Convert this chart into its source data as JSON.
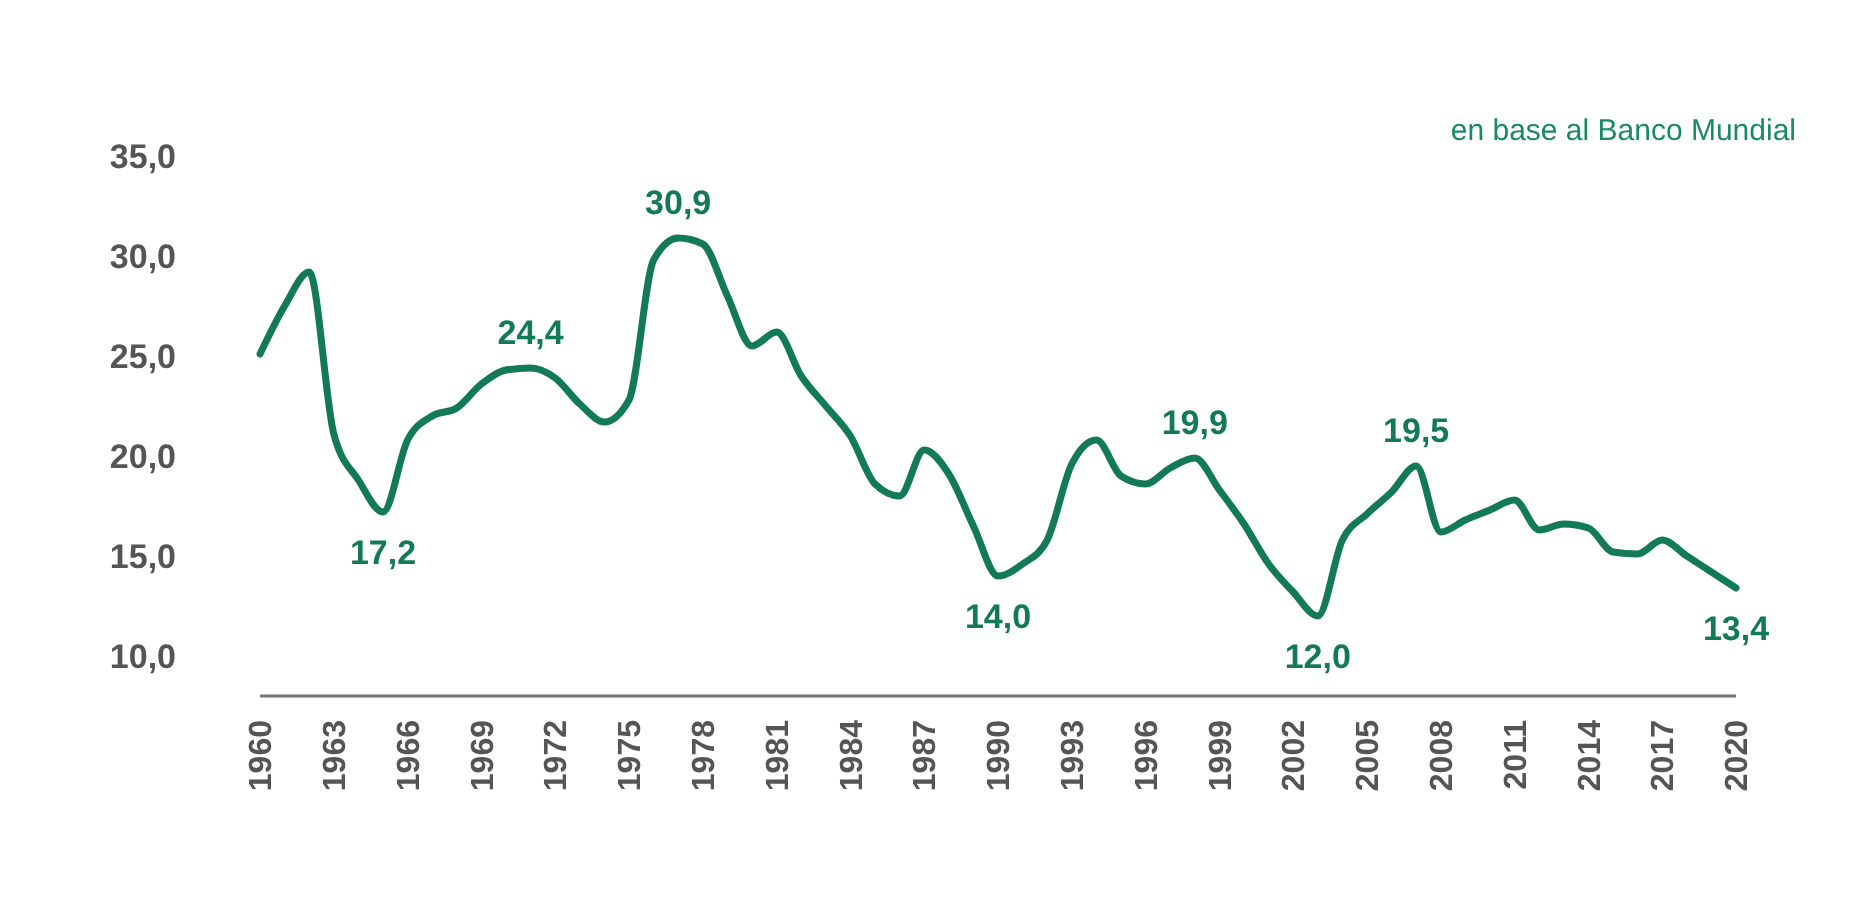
{
  "chart_data": {
    "type": "line",
    "annotations": [
      "en base al Banco Mundial"
    ],
    "x": [
      1960,
      1961,
      1962,
      1963,
      1964,
      1965,
      1966,
      1967,
      1968,
      1969,
      1970,
      1971,
      1972,
      1973,
      1974,
      1975,
      1976,
      1977,
      1978,
      1979,
      1980,
      1981,
      1982,
      1983,
      1984,
      1985,
      1986,
      1987,
      1988,
      1989,
      1990,
      1991,
      1992,
      1993,
      1994,
      1995,
      1996,
      1997,
      1998,
      1999,
      2000,
      2001,
      2002,
      2003,
      2004,
      2005,
      2006,
      2007,
      2008,
      2009,
      2010,
      2011,
      2012,
      2013,
      2014,
      2015,
      2016,
      2017,
      2018,
      2019,
      2020
    ],
    "series": [
      {
        "color": "#137a57",
        "values": [
          25.1,
          27.5,
          29.2,
          21.1,
          18.8,
          17.2,
          20.8,
          22.0,
          22.4,
          23.6,
          24.3,
          24.4,
          23.9,
          22.6,
          21.7,
          22.8,
          29.8,
          30.9,
          30.6,
          28.0,
          25.5,
          26.2,
          24.0,
          22.5,
          21.0,
          18.6,
          18.0,
          20.3,
          19.1,
          16.5,
          14.0,
          14.6,
          15.8,
          19.6,
          20.8,
          19.0,
          18.6,
          19.4,
          19.9,
          18.3,
          16.6,
          14.6,
          13.2,
          12.0,
          15.8,
          17.1,
          18.2,
          19.5,
          16.2,
          16.8,
          17.3,
          17.8,
          16.3,
          16.6,
          16.4,
          15.2,
          15.1,
          15.8,
          15.0,
          14.2,
          13.4
        ],
        "value_labels": [
          null,
          null,
          null,
          null,
          null,
          "17,2",
          null,
          null,
          null,
          null,
          null,
          "24,4",
          null,
          null,
          null,
          null,
          null,
          "30,9",
          null,
          null,
          null,
          null,
          null,
          null,
          null,
          null,
          null,
          null,
          null,
          null,
          "14,0",
          null,
          null,
          null,
          null,
          null,
          null,
          null,
          "19,9",
          null,
          null,
          null,
          null,
          "12,0",
          null,
          null,
          null,
          "19,5",
          null,
          null,
          null,
          null,
          null,
          null,
          null,
          null,
          null,
          null,
          null,
          null,
          "13,4"
        ]
      }
    ],
    "xlim": [
      1960,
      2020
    ],
    "xticks": [
      1960,
      1963,
      1966,
      1969,
      1972,
      1975,
      1978,
      1981,
      1984,
      1987,
      1990,
      1993,
      1996,
      1999,
      2002,
      2005,
      2008,
      2011,
      2014,
      2017,
      2020
    ],
    "ylim": [
      8,
      35
    ],
    "yticks": [
      {
        "value": 10,
        "label": "10,0"
      },
      {
        "value": 15,
        "label": "15,0"
      },
      {
        "value": 20,
        "label": "20,0"
      },
      {
        "value": 25,
        "label": "25,0"
      },
      {
        "value": 30,
        "label": "30,0"
      },
      {
        "value": 35,
        "label": "35,0"
      }
    ],
    "grid": false,
    "marker": "none",
    "line_style": "solid"
  }
}
